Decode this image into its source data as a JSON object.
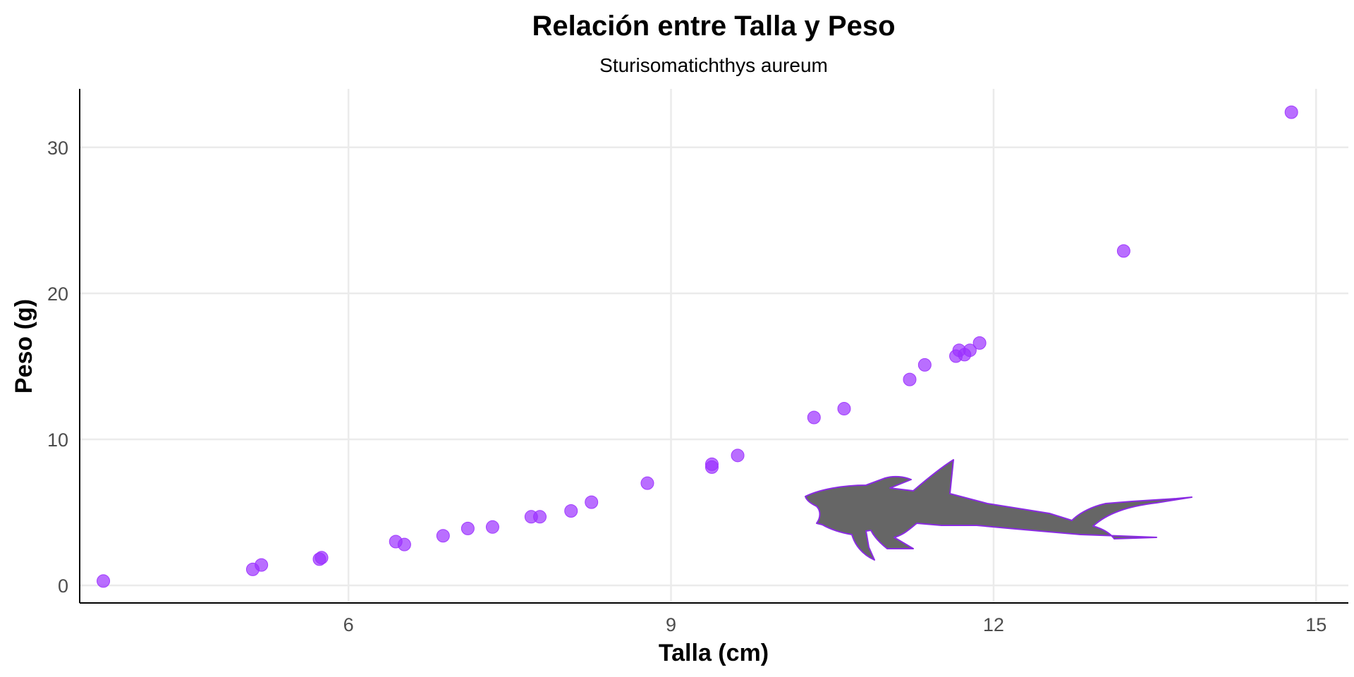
{
  "chart_data": {
    "type": "scatter",
    "title": "Relación entre Talla y Peso",
    "subtitle": "Sturisomatichthys aureum",
    "xlabel": "Talla (cm)",
    "ylabel": "Peso (g)",
    "xlim": [
      3.5,
      15.3
    ],
    "ylim": [
      -1.2,
      34.0
    ],
    "xticks": [
      6,
      9,
      12,
      15
    ],
    "yticks": [
      0,
      10,
      20,
      30
    ],
    "grid": true,
    "point_color": "#9b30ff",
    "silhouette_color": "#666666",
    "silhouette_outline": "#8a2be2",
    "points": [
      {
        "x": 3.72,
        "y": 0.3
      },
      {
        "x": 5.11,
        "y": 1.1
      },
      {
        "x": 5.19,
        "y": 1.4
      },
      {
        "x": 5.73,
        "y": 1.8
      },
      {
        "x": 5.75,
        "y": 1.9
      },
      {
        "x": 6.44,
        "y": 3.0
      },
      {
        "x": 6.52,
        "y": 2.8
      },
      {
        "x": 6.88,
        "y": 3.4
      },
      {
        "x": 7.11,
        "y": 3.9
      },
      {
        "x": 7.34,
        "y": 4.0
      },
      {
        "x": 7.7,
        "y": 4.7
      },
      {
        "x": 7.78,
        "y": 4.7
      },
      {
        "x": 8.07,
        "y": 5.1
      },
      {
        "x": 8.26,
        "y": 5.7
      },
      {
        "x": 8.78,
        "y": 7.0
      },
      {
        "x": 9.38,
        "y": 8.1
      },
      {
        "x": 9.38,
        "y": 8.3
      },
      {
        "x": 9.62,
        "y": 8.9
      },
      {
        "x": 10.33,
        "y": 11.5
      },
      {
        "x": 10.61,
        "y": 12.1
      },
      {
        "x": 11.22,
        "y": 14.1
      },
      {
        "x": 11.36,
        "y": 15.1
      },
      {
        "x": 11.65,
        "y": 15.7
      },
      {
        "x": 11.68,
        "y": 16.1
      },
      {
        "x": 11.73,
        "y": 15.8
      },
      {
        "x": 11.78,
        "y": 16.1
      },
      {
        "x": 11.87,
        "y": 16.6
      },
      {
        "x": 13.21,
        "y": 22.9
      },
      {
        "x": 14.77,
        "y": 32.4
      }
    ]
  }
}
